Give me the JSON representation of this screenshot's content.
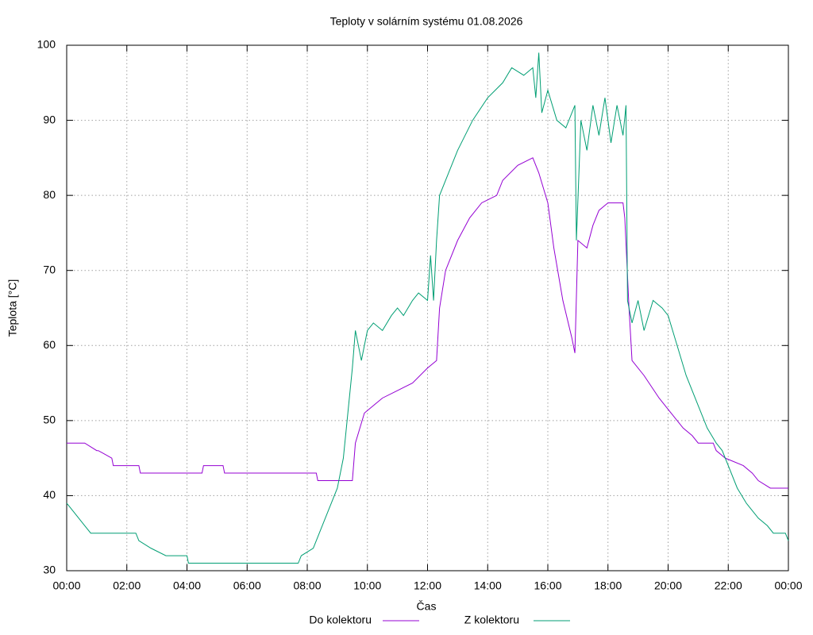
{
  "chart_data": {
    "type": "line",
    "title": "Teploty v solárním systému 01.08.2026",
    "x_label": "Čas",
    "y_label": "Teplota [°C]",
    "xlim": [
      0,
      24
    ],
    "xticks": [
      {
        "value": 0,
        "label": "00:00"
      },
      {
        "value": 2,
        "label": "02:00"
      },
      {
        "value": 4,
        "label": "04:00"
      },
      {
        "value": 6,
        "label": "06:00"
      },
      {
        "value": 8,
        "label": "08:00"
      },
      {
        "value": 10,
        "label": "10:00"
      },
      {
        "value": 12,
        "label": "12:00"
      },
      {
        "value": 14,
        "label": "14:00"
      },
      {
        "value": 16,
        "label": "16:00"
      },
      {
        "value": 18,
        "label": "18:00"
      },
      {
        "value": 20,
        "label": "20:00"
      },
      {
        "value": 22,
        "label": "22:00"
      },
      {
        "value": 24,
        "label": "00:00"
      }
    ],
    "ylim": [
      30,
      100
    ],
    "yticks": [
      30,
      40,
      50,
      60,
      70,
      80,
      90,
      100
    ],
    "grid": true,
    "legend": "bottom",
    "series": [
      {
        "name": "Do kolektoru",
        "color": "#9400d3",
        "x": [
          0,
          0.6,
          1.0,
          1.05,
          1.5,
          1.55,
          2.4,
          2.45,
          4.5,
          4.55,
          5.2,
          5.25,
          8.3,
          8.35,
          9.5,
          9.6,
          9.9,
          10.5,
          11.0,
          11.5,
          12.0,
          12.3,
          12.4,
          12.6,
          13.0,
          13.4,
          13.8,
          14.3,
          14.5,
          15.0,
          15.5,
          15.7,
          16.0,
          16.2,
          16.5,
          16.8,
          16.9,
          17.0,
          17.3,
          17.5,
          17.7,
          18.0,
          18.5,
          18.56,
          18.7,
          18.8,
          19.2,
          19.7,
          20.1,
          20.5,
          20.8,
          21.0,
          21.5,
          21.6,
          21.9,
          22.5,
          22.8,
          23.0,
          23.4,
          24
        ],
        "values": [
          47,
          47,
          46,
          46,
          45,
          44,
          44,
          43,
          43,
          44,
          44,
          43,
          43,
          42,
          42,
          47,
          51,
          53,
          54,
          55,
          57,
          58,
          65,
          70,
          74,
          77,
          79,
          80,
          82,
          84,
          85,
          83,
          79,
          73,
          66,
          61,
          59,
          74,
          73,
          76,
          78,
          79,
          79,
          77,
          65,
          58,
          56,
          53,
          51,
          49,
          48,
          47,
          47,
          46,
          45,
          44,
          43,
          42,
          41,
          41
        ]
      },
      {
        "name": "Z kolektoru",
        "color": "#009e73",
        "x": [
          0,
          0.2,
          0.4,
          0.6,
          0.8,
          2.3,
          2.4,
          2.8,
          3.3,
          4.0,
          4.05,
          7.7,
          7.8,
          8.2,
          8.4,
          8.7,
          9.0,
          9.2,
          9.3,
          9.5,
          9.6,
          9.8,
          10.0,
          10.2,
          10.5,
          10.8,
          11.0,
          11.2,
          11.5,
          11.7,
          12.0,
          12.1,
          12.2,
          12.3,
          12.4,
          12.6,
          13.0,
          13.5,
          14.0,
          14.5,
          14.8,
          15.2,
          15.5,
          15.6,
          15.7,
          15.8,
          16.0,
          16.3,
          16.6,
          16.9,
          16.95,
          17.1,
          17.3,
          17.5,
          17.7,
          17.9,
          18.1,
          18.3,
          18.5,
          18.6,
          18.65,
          18.8,
          19.0,
          19.2,
          19.5,
          19.8,
          20.0,
          20.3,
          20.6,
          21.0,
          21.3,
          21.6,
          21.8,
          22.0,
          22.3,
          22.6,
          23.0,
          23.3,
          23.5,
          23.9,
          24
        ],
        "values": [
          39,
          38,
          37,
          36,
          35,
          35,
          34,
          33,
          32,
          32,
          31,
          31,
          32,
          33,
          35,
          38,
          41,
          45,
          49,
          57,
          62,
          58,
          62,
          63,
          62,
          64,
          65,
          64,
          66,
          67,
          66,
          72,
          66,
          74,
          80,
          82,
          86,
          90,
          93,
          95,
          97,
          96,
          97,
          93,
          99,
          91,
          94,
          90,
          89,
          92,
          74,
          90,
          86,
          92,
          88,
          93,
          87,
          92,
          88,
          92,
          66,
          63,
          66,
          62,
          66,
          65,
          64,
          60,
          56,
          52,
          49,
          47,
          46,
          44,
          41,
          39,
          37,
          36,
          35,
          35,
          34
        ]
      }
    ]
  }
}
